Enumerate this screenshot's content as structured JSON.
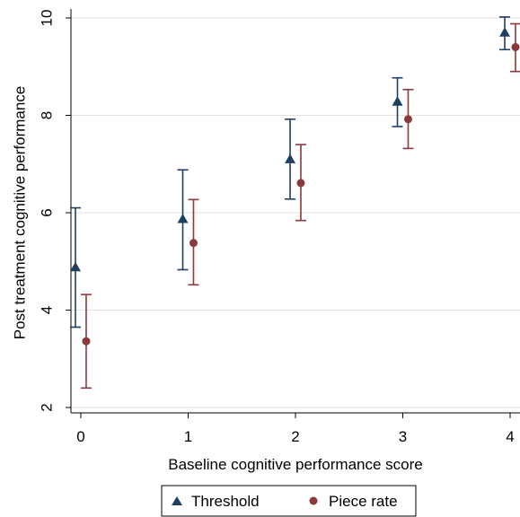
{
  "chart_data": {
    "type": "scatter",
    "xlabel": "Baseline cognitive performance score",
    "ylabel": "Post treatment cognitive performance",
    "x_ticks": [
      "0",
      "1",
      "2",
      "3",
      "4"
    ],
    "y_ticks": [
      "2",
      "4",
      "6",
      "8",
      "10"
    ],
    "xlim": [
      -0.1,
      4.1
    ],
    "ylim": [
      1.75,
      10.05
    ],
    "grid": true,
    "legend_position": "bottom",
    "series": [
      {
        "name": "Threshold",
        "marker": "triangle",
        "color": "#1f3f63",
        "x_offset": -0.05,
        "x": [
          0,
          1,
          2,
          3,
          4
        ],
        "y": [
          4.88,
          5.87,
          7.1,
          8.28,
          9.7
        ],
        "lower": [
          3.65,
          4.83,
          6.28,
          7.77,
          9.35
        ],
        "upper": [
          6.1,
          6.88,
          7.92,
          8.77,
          10.02
        ]
      },
      {
        "name": "Piece rate",
        "marker": "circle",
        "color": "#8b3a3a",
        "x_offset": 0.05,
        "x": [
          0,
          1,
          2,
          3,
          4
        ],
        "y": [
          3.36,
          5.38,
          6.61,
          7.92,
          9.4
        ],
        "lower": [
          2.4,
          4.52,
          5.84,
          7.32,
          8.9
        ],
        "upper": [
          4.32,
          6.27,
          7.4,
          8.53,
          9.88
        ]
      }
    ]
  }
}
